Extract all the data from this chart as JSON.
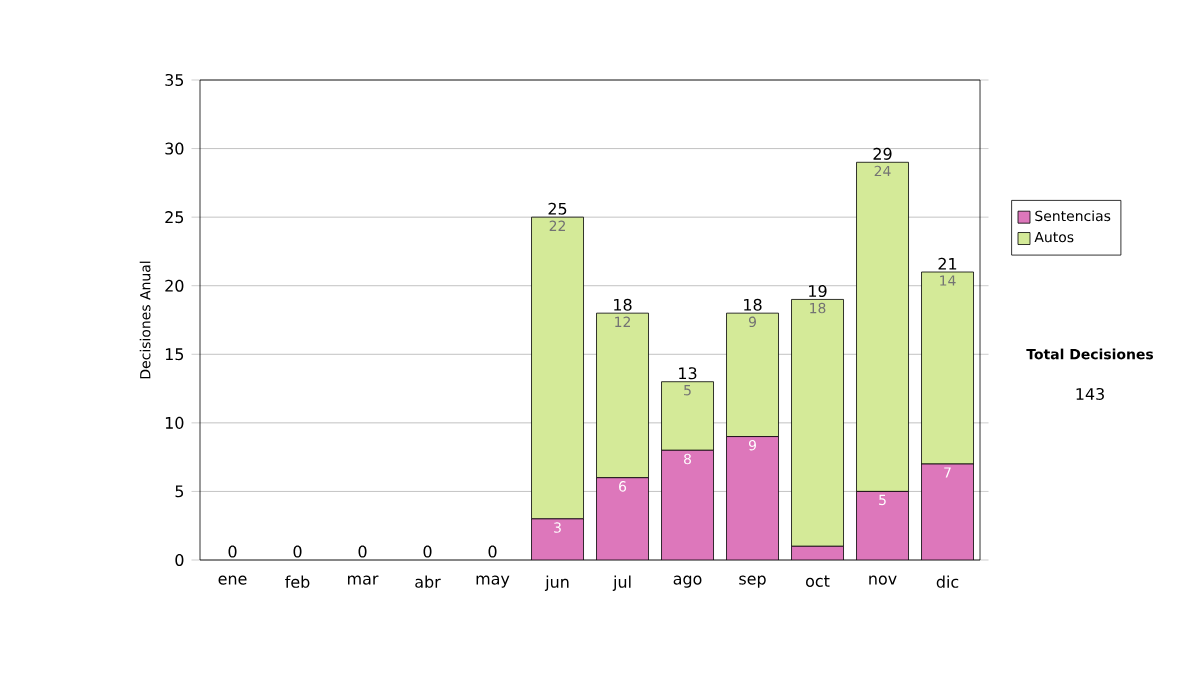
{
  "chart_data": {
    "type": "bar",
    "stacked": true,
    "ylabel": "Decisiones Anual",
    "categories": [
      "ene",
      "feb",
      "mar",
      "abr",
      "may",
      "jun",
      "jul",
      "ago",
      "sep",
      "oct",
      "nov",
      "dic"
    ],
    "series": [
      {
        "name": "Sentencias",
        "color": "#dd77bb",
        "values": [
          0,
          0,
          0,
          0,
          0,
          3,
          6,
          8,
          9,
          1,
          5,
          7
        ],
        "value_labels": [
          null,
          null,
          null,
          null,
          null,
          "3",
          "6",
          "8",
          "9",
          null,
          "5",
          "7"
        ]
      },
      {
        "name": "Autos",
        "color": "#d4ea98",
        "values": [
          0,
          0,
          0,
          0,
          0,
          22,
          12,
          5,
          9,
          18,
          24,
          14
        ],
        "value_labels": [
          null,
          null,
          null,
          null,
          null,
          "22",
          "12",
          "5",
          "9",
          "18",
          "24",
          "14"
        ]
      }
    ],
    "totals": [
      "0",
      "0",
      "0",
      "0",
      "0",
      "25",
      "18",
      "13",
      "18",
      "19",
      "29",
      "21"
    ],
    "ylim": [
      0,
      35
    ],
    "yticks": [
      0,
      5,
      10,
      15,
      20,
      25,
      30,
      35
    ],
    "grid": "y",
    "legend": "right",
    "annotations": [
      "Total Decisiones",
      "143"
    ]
  }
}
